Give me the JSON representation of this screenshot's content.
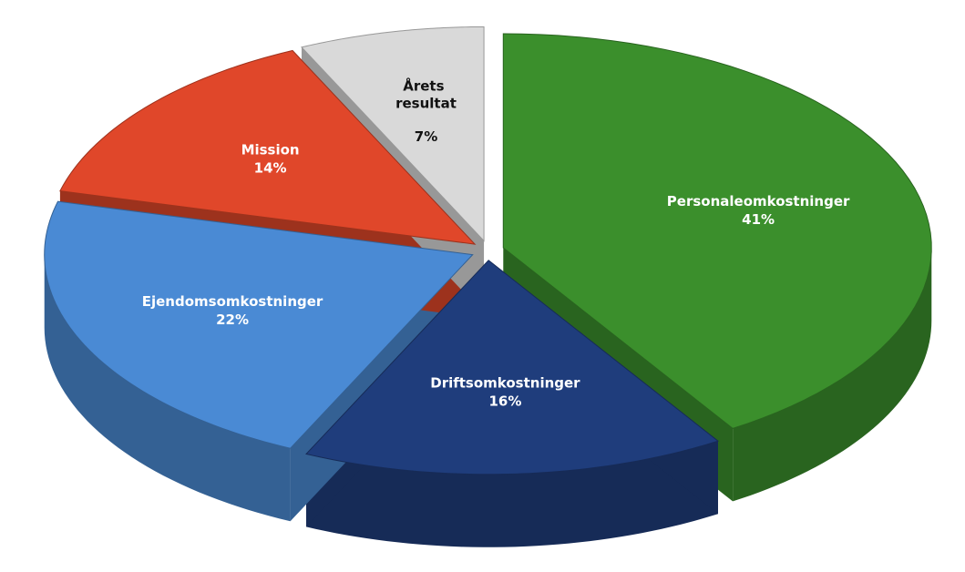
{
  "chart_data": {
    "type": "pie",
    "categories": [
      "Personaleomkostninger",
      "Driftsomkostninger",
      "Ejendomsomkostninger",
      "Mission",
      "Årets resultat"
    ],
    "values": [
      41,
      16,
      22,
      14,
      7
    ],
    "value_labels": [
      "41%",
      "16%",
      "22%",
      "14%",
      "7%"
    ],
    "colors": [
      "#3b8f2c",
      "#1f3d7c",
      "#4a8ad4",
      "#e0472a",
      "#d9d9d9"
    ]
  }
}
